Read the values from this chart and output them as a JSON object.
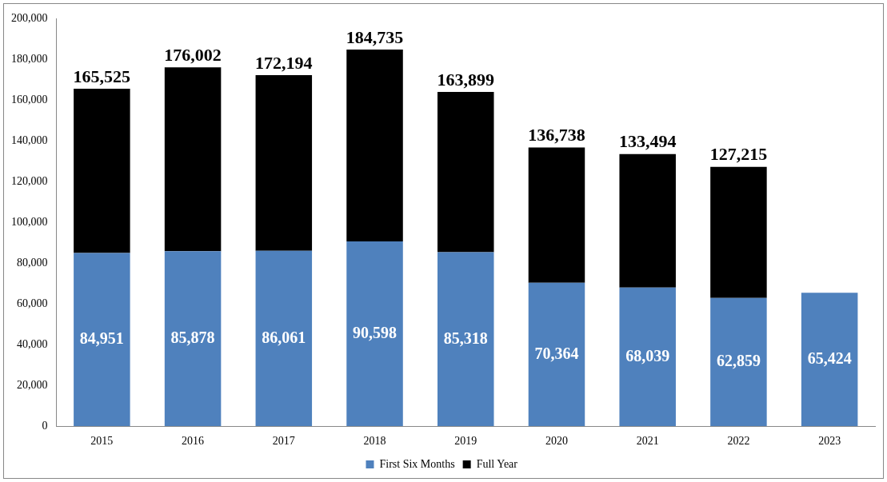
{
  "chart_data": {
    "type": "bar",
    "stacked": true,
    "categories": [
      "2015",
      "2016",
      "2017",
      "2018",
      "2019",
      "2020",
      "2021",
      "2022",
      "2023"
    ],
    "series": [
      {
        "name": "First Six Months",
        "color": "#4f81bd",
        "values": [
          84951,
          85878,
          86061,
          90598,
          85318,
          70364,
          68039,
          62859,
          65424
        ],
        "value_labels": [
          "84,951",
          "85,878",
          "86,061",
          "90,598",
          "85,318",
          "70,364",
          "68,039",
          "62,859",
          "65,424"
        ]
      },
      {
        "name": "Full Year",
        "color": "#000000",
        "values": [
          80574,
          90124,
          86133,
          94137,
          78581,
          66374,
          65455,
          64356,
          null
        ]
      }
    ],
    "totals": [
      "165,525",
      "176,002",
      "172,194",
      "184,735",
      "163,899",
      "136,738",
      "133,494",
      "127,215",
      null
    ],
    "ylim": [
      0,
      200000
    ],
    "yticks": [
      0,
      {
        "value": 20000,
        "label": "20,000"
      },
      {
        "value": 40000,
        "label": "40,000"
      },
      {
        "value": 60000,
        "label": "60,000"
      },
      {
        "value": 80000,
        "label": "80,000"
      },
      {
        "value": 100000,
        "label": "100,000"
      },
      {
        "value": 120000,
        "label": "120,000"
      },
      {
        "value": 140000,
        "label": "140,000"
      },
      {
        "value": 160000,
        "label": "160,000"
      },
      {
        "value": 180000,
        "label": "180,000"
      },
      {
        "value": 200000,
        "label": "200,000"
      }
    ],
    "grid": false,
    "legend": "bottom"
  }
}
